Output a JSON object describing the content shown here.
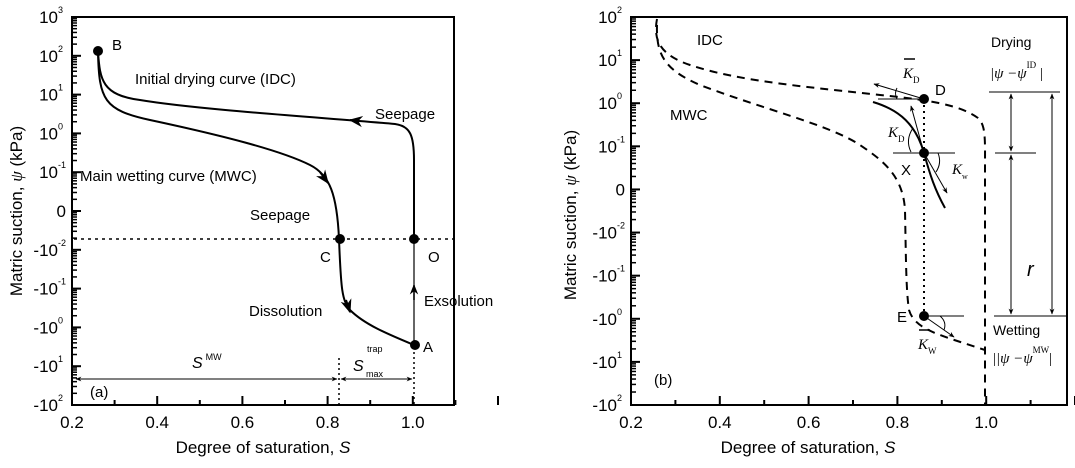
{
  "chart_data": [
    {
      "type": "line",
      "panel_label": "(a)",
      "xlabel": "Degree of saturation, ",
      "xlabel_symbol": "S",
      "ylabel": "Matric suction, ",
      "ylabel_symbol": "ψ",
      "ylabel_unit": " (kPa)",
      "xlim": [
        0.2,
        1.2
      ],
      "x_ticks": [
        "0.2",
        "0.4",
        "0.6",
        "0.8",
        "1.0"
      ],
      "y_ticks": [
        {
          "base": "10",
          "exp": "3"
        },
        {
          "base": "10",
          "exp": "2"
        },
        {
          "base": "10",
          "exp": "1"
        },
        {
          "base": "10",
          "exp": "0"
        },
        {
          "base": "10",
          "exp": "-1"
        },
        {
          "base": "0",
          "exp": ""
        },
        {
          "base": "-10",
          "exp": "-2"
        },
        {
          "base": "-10",
          "exp": "-1"
        },
        {
          "base": "-10",
          "exp": "0"
        },
        {
          "base": "-10",
          "exp": "1"
        },
        {
          "base": "-10",
          "exp": "2"
        }
      ],
      "series": [
        {
          "name": "Initial drying curve (IDC)",
          "style": "solid"
        },
        {
          "name": "Main wetting curve (MWC)",
          "style": "solid"
        },
        {
          "name": "Exsolution path",
          "style": "solid"
        }
      ],
      "points": [
        {
          "label": "B",
          "S": 0.26,
          "psi_label": "~2×10^2"
        },
        {
          "label": "C",
          "S": 0.82,
          "psi_label": "0"
        },
        {
          "label": "O",
          "S": 1.0,
          "psi_label": "0"
        },
        {
          "label": "A",
          "S": 1.0,
          "psi_label": "~-2×10^0"
        }
      ],
      "annotations": {
        "idc": "Initial drying curve (IDC)",
        "mwc": "Main wetting curve (MWC)",
        "seepage_top": "Seepage",
        "seepage_mid": "Seepage",
        "dissolution": "Dissolution",
        "exsolution": "Exsolution",
        "s_mw": "S",
        "s_mw_sup": "MW",
        "s_trap": "S",
        "s_trap_sup": "trap",
        "s_trap_sub": "max"
      }
    },
    {
      "type": "line",
      "panel_label": "(b)",
      "xlabel": "Degree of saturation, ",
      "xlabel_symbol": "S",
      "ylabel": "Matric suction, ",
      "ylabel_symbol": "ψ",
      "ylabel_unit": " (kPa)",
      "xlim": [
        0.2,
        1.2
      ],
      "x_ticks": [
        "0.2",
        "0.4",
        "0.6",
        "0.8",
        "1.0"
      ],
      "y_ticks": [
        {
          "base": "10",
          "exp": "2"
        },
        {
          "base": "10",
          "exp": "1"
        },
        {
          "base": "10",
          "exp": "0"
        },
        {
          "base": "10",
          "exp": "-1"
        },
        {
          "base": "0",
          "exp": ""
        },
        {
          "base": "-10",
          "exp": "-2"
        },
        {
          "base": "-10",
          "exp": "-1"
        },
        {
          "base": "-10",
          "exp": "0"
        },
        {
          "base": "-10",
          "exp": "1"
        },
        {
          "base": "-10",
          "exp": "2"
        }
      ],
      "series": [
        {
          "name": "IDC",
          "style": "dashed"
        },
        {
          "name": "MWC",
          "style": "dashed"
        },
        {
          "name": "Scanning curve through X",
          "style": "solid"
        }
      ],
      "points": [
        {
          "label": "D",
          "S": 0.87,
          "on": "IDC"
        },
        {
          "label": "X",
          "S": 0.87
        },
        {
          "label": "E",
          "S": 0.87,
          "on": "MWC"
        }
      ],
      "annotations": {
        "idc": "IDC",
        "mwc": "MWC",
        "drying": "Drying",
        "wetting": "Wetting",
        "drying_expr": "|ψ −ψ",
        "drying_sup": "ID",
        "wetting_expr": "|ψ −ψ",
        "wetting_sup": "MW",
        "r": "r",
        "k": "K",
        "k_d_sub": "D",
        "k_w_sub": "w",
        "k_w_bar_sub": "W"
      }
    }
  ]
}
